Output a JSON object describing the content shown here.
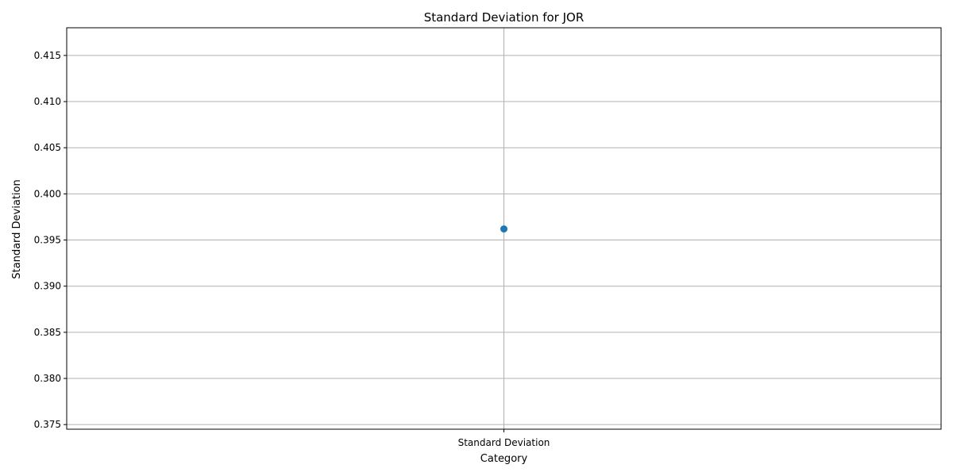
{
  "chart_data": {
    "type": "line",
    "title": "Standard Deviation for JOR",
    "xlabel": "Category",
    "ylabel": "Standard Deviation",
    "categories": [
      "Standard Deviation"
    ],
    "series": [
      {
        "values": [
          0.3962
        ],
        "color": "#1f77b4"
      }
    ],
    "ylim": [
      0.3745,
      0.418
    ],
    "yticks": [
      0.375,
      0.38,
      0.385,
      0.39,
      0.395,
      0.4,
      0.405,
      0.41,
      0.415
    ],
    "ytick_labels": [
      "0.375",
      "0.380",
      "0.385",
      "0.390",
      "0.395",
      "0.400",
      "0.405",
      "0.410",
      "0.415"
    ],
    "grid": true,
    "legend": "none"
  }
}
